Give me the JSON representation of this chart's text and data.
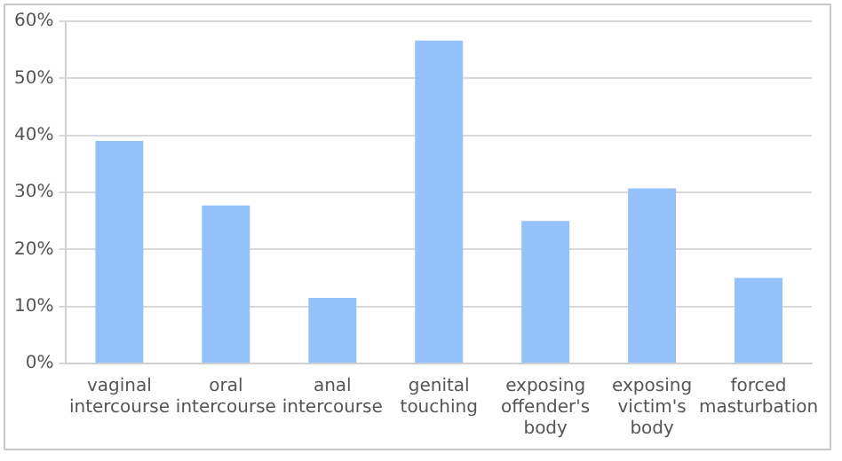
{
  "chart_data": {
    "type": "bar",
    "categories": [
      "vaginal intercourse",
      "oral intercourse",
      "anal intercourse",
      "genital touching",
      "exposing offender's body",
      "exposing victim's body",
      "forced masturbation"
    ],
    "values": [
      39,
      27.7,
      11.5,
      56.6,
      25,
      30.7,
      15
    ],
    "color": "#94c1fa",
    "ylim": [
      0,
      60
    ],
    "yticks": [
      {
        "value": 0,
        "label": "0%"
      },
      {
        "value": 10,
        "label": "10%"
      },
      {
        "value": 20,
        "label": "20%"
      },
      {
        "value": 30,
        "label": "30%"
      },
      {
        "value": 40,
        "label": "40%"
      },
      {
        "value": 50,
        "label": "50%"
      },
      {
        "value": 60,
        "label": "60%"
      }
    ],
    "grid": "y",
    "legend": false
  }
}
